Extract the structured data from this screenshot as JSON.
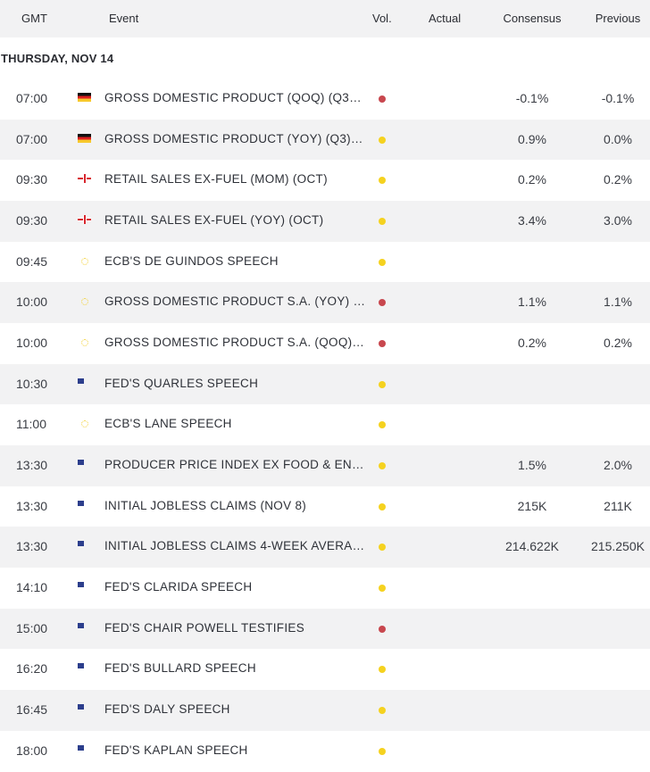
{
  "header": {
    "gmt": "GMT",
    "event": "Event",
    "vol": "Vol.",
    "actual": "Actual",
    "consensus": "Consensus",
    "previous": "Previous"
  },
  "day_label": "THURSDAY, NOV 14",
  "volatility_colors": {
    "high": "#c8474e",
    "medium": "#f5d21f"
  },
  "rows": [
    {
      "time": "07:00",
      "flag": "germany-flag",
      "event": "GROSS DOMESTIC PRODUCT (QOQ) (Q3)P…",
      "vol": "high",
      "consensus": "-0.1%",
      "previous": "-0.1%"
    },
    {
      "time": "07:00",
      "flag": "germany-flag",
      "event": "GROSS DOMESTIC PRODUCT (YOY) (Q3)P…",
      "vol": "medium",
      "consensus": "0.9%",
      "previous": "0.0%"
    },
    {
      "time": "09:30",
      "flag": "uk-flag",
      "event": "RETAIL SALES EX-FUEL (MOM) (OCT)",
      "vol": "medium",
      "consensus": "0.2%",
      "previous": "0.2%"
    },
    {
      "time": "09:30",
      "flag": "uk-flag",
      "event": "RETAIL SALES EX-FUEL (YOY) (OCT)",
      "vol": "medium",
      "consensus": "3.4%",
      "previous": "3.0%"
    },
    {
      "time": "09:45",
      "flag": "eu-flag",
      "event": "ECB'S DE GUINDOS SPEECH",
      "vol": "medium",
      "consensus": "",
      "previous": ""
    },
    {
      "time": "10:00",
      "flag": "eu-flag",
      "event": "GROSS DOMESTIC PRODUCT S.A. (YOY) (…",
      "vol": "high",
      "consensus": "1.1%",
      "previous": "1.1%"
    },
    {
      "time": "10:00",
      "flag": "eu-flag",
      "event": "GROSS DOMESTIC PRODUCT S.A. (QOQ) (…",
      "vol": "high",
      "consensus": "0.2%",
      "previous": "0.2%"
    },
    {
      "time": "10:30",
      "flag": "us-flag",
      "event": "FED'S QUARLES SPEECH",
      "vol": "medium",
      "consensus": "",
      "previous": ""
    },
    {
      "time": "11:00",
      "flag": "eu-flag",
      "event": "ECB'S LANE SPEECH",
      "vol": "medium",
      "consensus": "",
      "previous": ""
    },
    {
      "time": "13:30",
      "flag": "us-flag",
      "event": "PRODUCER PRICE INDEX EX FOOD & ENE…",
      "vol": "medium",
      "consensus": "1.5%",
      "previous": "2.0%"
    },
    {
      "time": "13:30",
      "flag": "us-flag",
      "event": "INITIAL JOBLESS CLAIMS (NOV 8)",
      "vol": "medium",
      "consensus": "215K",
      "previous": "211K"
    },
    {
      "time": "13:30",
      "flag": "us-flag",
      "event": "INITIAL JOBLESS CLAIMS 4-WEEK AVERA…",
      "vol": "medium",
      "consensus": "214.622K",
      "previous": "215.250K"
    },
    {
      "time": "14:10",
      "flag": "us-flag",
      "event": "FED'S CLARIDA SPEECH",
      "vol": "medium",
      "consensus": "",
      "previous": ""
    },
    {
      "time": "15:00",
      "flag": "us-flag",
      "event": "FED'S CHAIR POWELL TESTIFIES",
      "vol": "high",
      "consensus": "",
      "previous": ""
    },
    {
      "time": "16:20",
      "flag": "us-flag",
      "event": "FED'S BULLARD SPEECH",
      "vol": "medium",
      "consensus": "",
      "previous": ""
    },
    {
      "time": "16:45",
      "flag": "us-flag",
      "event": "FED'S DALY SPEECH",
      "vol": "medium",
      "consensus": "",
      "previous": ""
    },
    {
      "time": "18:00",
      "flag": "us-flag",
      "event": "FED'S KAPLAN SPEECH",
      "vol": "medium",
      "consensus": "",
      "previous": ""
    }
  ]
}
